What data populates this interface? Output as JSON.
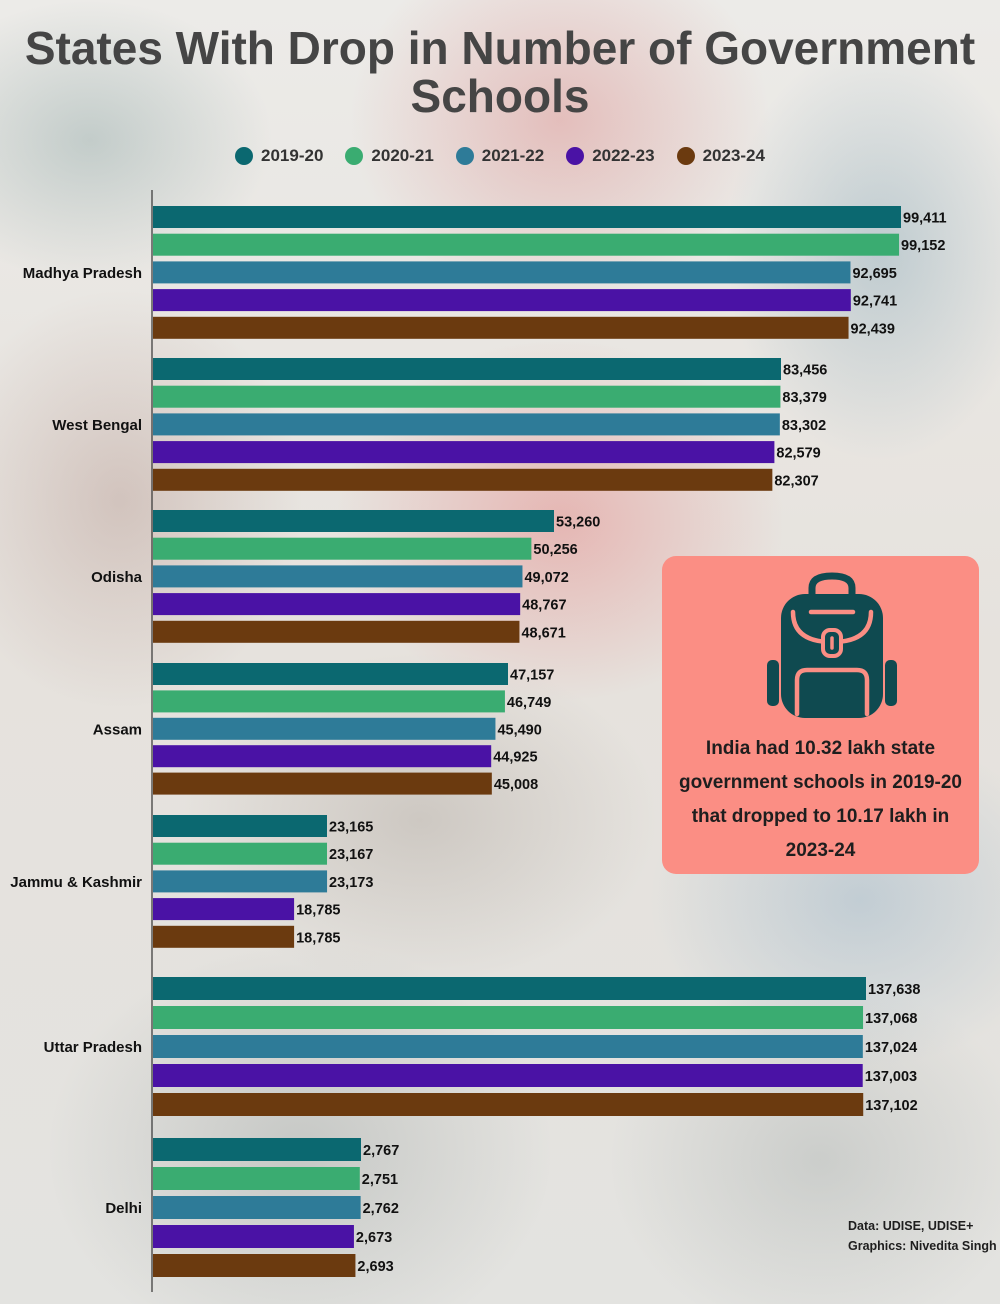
{
  "chart_data": {
    "type": "bar",
    "orientation": "horizontal",
    "title": "States With Drop in Number of Government Schools",
    "categories": [
      "Madhya Pradesh",
      "West Bengal",
      "Odisha",
      "Assam",
      "Jammu & Kashmir",
      "Uttar Pradesh",
      "Delhi"
    ],
    "series": [
      {
        "name": "2019-20",
        "color": "#0b6870",
        "values": [
          99411,
          83456,
          53260,
          47157,
          23165,
          137638,
          2767
        ]
      },
      {
        "name": "2020-21",
        "color": "#3aac71",
        "values": [
          99152,
          83379,
          50256,
          46749,
          23167,
          137068,
          2751
        ]
      },
      {
        "name": "2021-22",
        "color": "#2e7b98",
        "values": [
          92695,
          83302,
          49072,
          45490,
          23173,
          137024,
          2762
        ]
      },
      {
        "name": "2022-23",
        "color": "#4a12a5",
        "values": [
          92741,
          82579,
          48767,
          44925,
          18785,
          137003,
          2673
        ]
      },
      {
        "name": "2023-24",
        "color": "#6b3a0f",
        "values": [
          92439,
          82307,
          48671,
          45008,
          18785,
          137102,
          2693
        ]
      }
    ],
    "value_labels": {
      "Madhya Pradesh": [
        "99,411",
        "99,152",
        "92,695",
        "92,741",
        "92,439"
      ],
      "West Bengal": [
        "83,456",
        "83,379",
        "83,302",
        "82,579",
        "82,307"
      ],
      "Odisha": [
        "53,260",
        "50,256",
        "49,072",
        "48,767",
        "48,671"
      ],
      "Assam": [
        "47,157",
        "46,749",
        "45,490",
        "44,925",
        "45,008"
      ],
      "Jammu & Kashmir": [
        "23,165",
        "23,167",
        "23,173",
        "18,785",
        "18,785"
      ],
      "Uttar Pradesh": [
        "137,638",
        "137,068",
        "137,024",
        "137,003",
        "137,102"
      ],
      "Delhi": [
        "2,767",
        "2,751",
        "2,762",
        "2,673",
        "2,693"
      ]
    },
    "scale_note": "Each state group is drawn on its own scale, as in the original graphic",
    "grid": false,
    "legend_position": "top-center"
  },
  "callout": {
    "text": "India had 10.32 lakh state government schools in 2019-20 that dropped to 10.17 lakh in 2023-24",
    "icon": "backpack-icon",
    "background": "#fb8e84"
  },
  "source": {
    "data_line": "Data: UDISE, UDISE+",
    "graphics_line": "Graphics: Nivedita Singh"
  },
  "colors": {
    "title": "#454545",
    "axis": "#333333"
  }
}
